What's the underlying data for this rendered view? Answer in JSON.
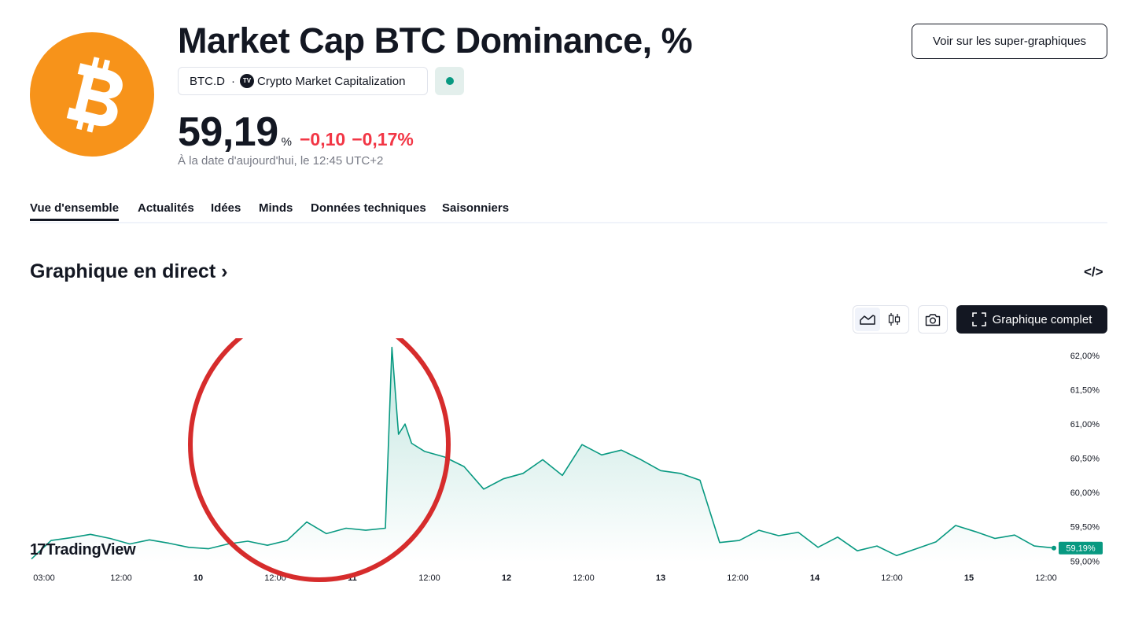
{
  "header": {
    "title": "Market Cap BTC Dominance, %",
    "symbol": "BTC.D",
    "separator": "·",
    "exchange_icon_text": "TV",
    "exchange": "Crypto Market Capitalization",
    "super_charts_button": "Voir sur les super-graphiques",
    "status_color": "#089981"
  },
  "quote": {
    "price": "59,19",
    "unit": "%",
    "change": "−0,10",
    "change_percent": "−0,17%",
    "as_of": "À la date d'aujourd'hui, le 12:45 UTC+2",
    "change_color": "#f23645"
  },
  "tabs": [
    {
      "label": "Vue d'ensemble",
      "active": true
    },
    {
      "label": "Actualités",
      "active": false
    },
    {
      "label": "Idées",
      "active": false
    },
    {
      "label": "Minds",
      "active": false
    },
    {
      "label": "Données techniques",
      "active": false
    },
    {
      "label": "Saisonniers",
      "active": false
    }
  ],
  "section": {
    "title": "Graphique en direct",
    "arrow": "›",
    "embed_icon": "</>"
  },
  "toolbar": {
    "area_icon": "area-chart-icon",
    "candle_icon": "candlestick-icon",
    "camera_icon": "camera-icon",
    "full_chart_label": "Graphique complet"
  },
  "brand": {
    "glyph": "17",
    "name": "TradingView"
  },
  "chart_data": {
    "type": "area",
    "line_color": "#089981",
    "ylim": [
      58.98,
      62.08
    ],
    "y_ticks": [
      "62,00%",
      "61,50%",
      "61,00%",
      "60,50%",
      "60,00%",
      "59,50%",
      "59,00%"
    ],
    "x_ticks": [
      {
        "label": "03:00",
        "bold": false
      },
      {
        "label": "12:00",
        "bold": false
      },
      {
        "label": "10",
        "bold": true
      },
      {
        "label": "12:00",
        "bold": false
      },
      {
        "label": "11",
        "bold": true
      },
      {
        "label": "12:00",
        "bold": false
      },
      {
        "label": "12",
        "bold": true
      },
      {
        "label": "12:00",
        "bold": false
      },
      {
        "label": "13",
        "bold": true
      },
      {
        "label": "12:00",
        "bold": false
      },
      {
        "label": "14",
        "bold": true
      },
      {
        "label": "12:00",
        "bold": false
      },
      {
        "label": "15",
        "bold": true
      },
      {
        "label": "12:00",
        "bold": false
      }
    ],
    "last_value_label": "59,19%",
    "last_value": 59.19,
    "x_range": [
      0,
      156
    ],
    "x": [
      0,
      3,
      6,
      9,
      12,
      15,
      18,
      21,
      24,
      27,
      30,
      33,
      36,
      39,
      42,
      45,
      48,
      51,
      54,
      55,
      56,
      57,
      58,
      60,
      63,
      66,
      69,
      72,
      75,
      78,
      81,
      84,
      87,
      90,
      93,
      96,
      99,
      102,
      105,
      108,
      111,
      114,
      117,
      120,
      123,
      126,
      129,
      132,
      135,
      138,
      141,
      144,
      147,
      150,
      153,
      156
    ],
    "values": [
      59.03,
      59.3,
      59.34,
      59.39,
      59.33,
      59.25,
      59.31,
      59.26,
      59.2,
      59.18,
      59.25,
      59.29,
      59.23,
      59.3,
      59.57,
      59.4,
      59.48,
      59.45,
      59.48,
      62.12,
      60.85,
      61.0,
      60.72,
      60.6,
      60.52,
      60.38,
      60.05,
      60.2,
      60.28,
      60.48,
      60.25,
      60.7,
      60.55,
      60.62,
      60.48,
      60.32,
      60.28,
      60.18,
      59.27,
      59.3,
      59.45,
      59.37,
      59.42,
      59.2,
      59.35,
      59.15,
      59.22,
      59.08,
      59.18,
      59.28,
      59.52,
      59.43,
      59.33,
      59.38,
      59.22,
      59.19
    ]
  }
}
